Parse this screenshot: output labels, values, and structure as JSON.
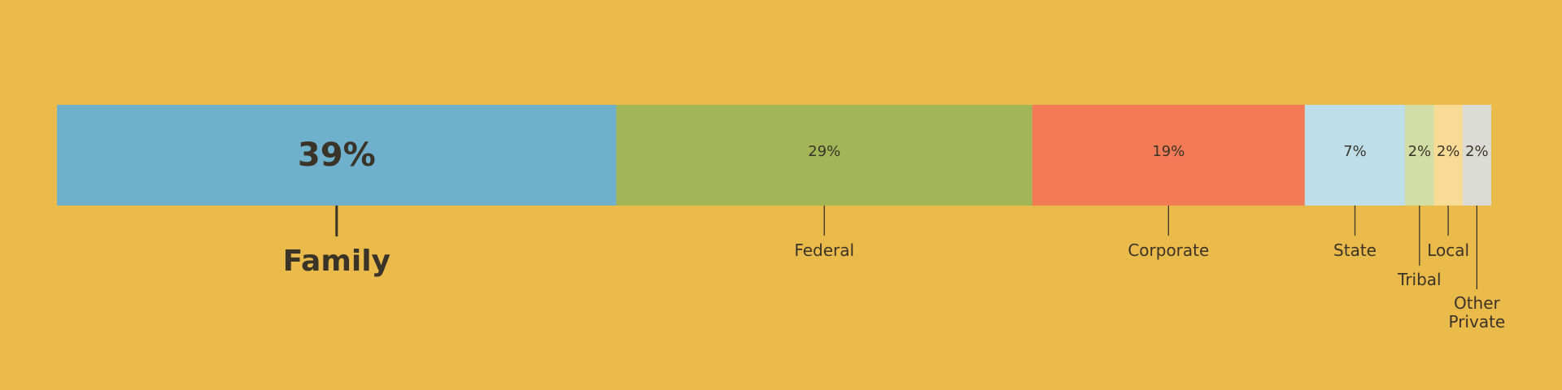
{
  "chart_data": {
    "type": "bar",
    "orientation": "stacked-horizontal",
    "title": "",
    "xlabel": "",
    "ylabel": "",
    "grid": false,
    "legend": "none",
    "unit": "%",
    "background_color": "#EABA4B",
    "label_color": "#3A3328",
    "segments": [
      {
        "category": "Family",
        "value": 39,
        "value_label": "39%",
        "color": "#6FB1CC",
        "emphasis": true
      },
      {
        "category": "Federal",
        "value": 29,
        "value_label": "29%",
        "color": "#A2B557",
        "emphasis": false
      },
      {
        "category": "Corporate",
        "value": 19,
        "value_label": "19%",
        "color": "#F27B55",
        "emphasis": false
      },
      {
        "category": "State",
        "value": 7,
        "value_label": "7%",
        "color": "#BEDEEA",
        "emphasis": false
      },
      {
        "category": "Tribal",
        "value": 2,
        "value_label": "2%",
        "color": "#D3DEA7",
        "emphasis": false
      },
      {
        "category": "Local",
        "value": 2,
        "value_label": "2%",
        "color": "#F8DC96",
        "emphasis": false
      },
      {
        "category": "Other Private",
        "value": 2,
        "value_label": "2%",
        "color": "#DCDCD6",
        "emphasis": false
      }
    ]
  }
}
